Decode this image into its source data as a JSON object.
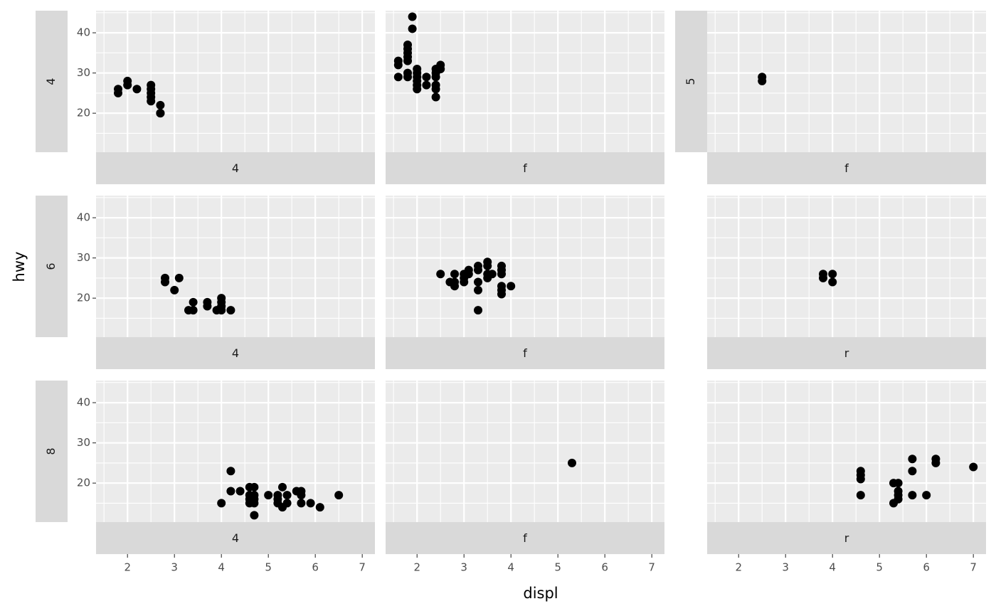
{
  "chart_data": {
    "type": "scatter",
    "x_label": "displ",
    "y_label": "hwy",
    "xlim": [
      1.33,
      7.27
    ],
    "ylim": [
      10.3,
      45.5
    ],
    "xticks": [
      2,
      3,
      4,
      5,
      6,
      7
    ],
    "yticks": [
      20,
      30,
      40
    ],
    "grid": true,
    "minor_grid": true,
    "color": "#000000",
    "panels": [
      {
        "row_label": "4",
        "col_label": "4",
        "x": [
          1.8,
          1.8,
          2.0,
          2.0,
          2.2,
          2.5,
          2.5,
          2.5,
          2.5,
          2.5,
          2.7,
          2.7,
          2.7
        ],
        "y": [
          26,
          25,
          28,
          27,
          26,
          27,
          26,
          25,
          24,
          23,
          22,
          20,
          20
        ]
      },
      {
        "col_label": "f",
        "x": [
          1.6,
          1.6,
          1.6,
          1.8,
          1.8,
          1.8,
          1.8,
          1.8,
          1.8,
          1.8,
          1.9,
          1.9,
          2.0,
          2.0,
          2.0,
          2.0,
          2.0,
          2.0,
          2.2,
          2.2,
          2.4,
          2.4,
          2.4,
          2.4,
          2.4,
          2.4,
          2.5,
          2.5
        ],
        "y": [
          33,
          32,
          29,
          29,
          30,
          33,
          34,
          35,
          36,
          37,
          44,
          41,
          31,
          30,
          29,
          28,
          27,
          26,
          29,
          27,
          31,
          30,
          29,
          27,
          26,
          24,
          31,
          32
        ]
      },
      {
        "row_label": "5",
        "col_label": "f",
        "x": [
          2.5,
          2.5
        ],
        "y": [
          29,
          28
        ]
      },
      {
        "row_label": "6",
        "col_label": "4",
        "x": [
          2.8,
          2.8,
          3.0,
          3.1,
          3.3,
          3.4,
          3.4,
          3.7,
          3.7,
          3.9,
          4.0,
          4.0,
          4.0,
          4.0,
          4.2
        ],
        "y": [
          25,
          24,
          22,
          25,
          17,
          17,
          19,
          19,
          18,
          17,
          17,
          18,
          19,
          20,
          17
        ]
      },
      {
        "col_label": "f",
        "x": [
          2.5,
          2.7,
          2.8,
          2.8,
          2.8,
          3.0,
          3.0,
          3.0,
          3.1,
          3.1,
          3.3,
          3.3,
          3.3,
          3.3,
          3.3,
          3.5,
          3.5,
          3.5,
          3.5,
          3.6,
          3.8,
          3.8,
          3.8,
          3.8,
          3.8,
          3.8,
          4.0
        ],
        "y": [
          26,
          24,
          24,
          23,
          26,
          26,
          25,
          24,
          26,
          27,
          28,
          27,
          24,
          22,
          17,
          29,
          28,
          26,
          25,
          26,
          28,
          27,
          26,
          23,
          22,
          21,
          23
        ]
      },
      {
        "col_label": "r",
        "x": [
          3.8,
          3.8,
          4.0,
          4.0
        ],
        "y": [
          26,
          25,
          26,
          24
        ]
      },
      {
        "row_label": "8",
        "col_label": "4",
        "x": [
          4.0,
          4.2,
          4.2,
          4.4,
          4.6,
          4.6,
          4.6,
          4.6,
          4.7,
          4.7,
          4.7,
          4.7,
          4.7,
          5.0,
          5.2,
          5.2,
          5.2,
          5.3,
          5.3,
          5.4,
          5.4,
          5.6,
          5.7,
          5.7,
          5.7,
          5.9,
          6.1,
          6.5
        ],
        "y": [
          15,
          23,
          18,
          18,
          19,
          17,
          16,
          15,
          19,
          17,
          16,
          15,
          12,
          17,
          17,
          16,
          15,
          19,
          14,
          17,
          15,
          18,
          18,
          17,
          15,
          15,
          14,
          17
        ]
      },
      {
        "col_label": "f",
        "x": [
          5.3
        ],
        "y": [
          25
        ]
      },
      {
        "col_label": "r",
        "x": [
          4.6,
          4.6,
          4.6,
          4.6,
          5.3,
          5.3,
          5.4,
          5.4,
          5.4,
          5.4,
          5.7,
          5.7,
          5.7,
          6.0,
          6.2,
          6.2,
          7.0
        ],
        "y": [
          23,
          22,
          21,
          17,
          20,
          15,
          20,
          18,
          17,
          16,
          26,
          23,
          17,
          17,
          26,
          25,
          24
        ]
      }
    ]
  }
}
